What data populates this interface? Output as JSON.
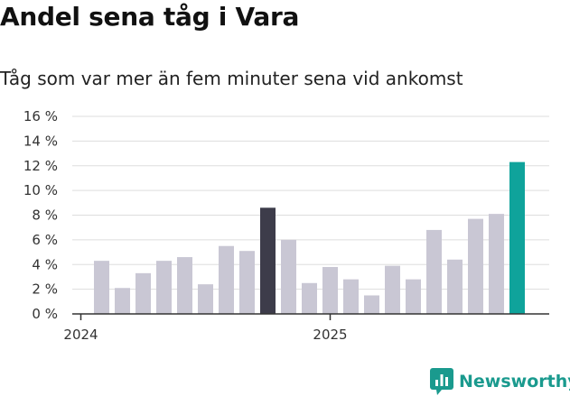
{
  "header": {
    "title": "Andel sena tåg i Vara",
    "subtitle": "Tåg som var mer än fem minuter sena vid ankomst"
  },
  "brand": {
    "name": "Newsworthy",
    "logo_icon": "bar-chart-icon",
    "color": "#1a9a8e"
  },
  "colors": {
    "default_bar": "#c9c7d4",
    "highlight_bar": "#3d3c4a",
    "latest_bar": "#0fa39b",
    "grid": "#dddddd",
    "axis": "#333333"
  },
  "chart_data": {
    "type": "bar",
    "title": "Andel sena tåg i Vara",
    "subtitle": "Tåg som var mer än fem minuter sena vid ankomst",
    "ylim": [
      0,
      16
    ],
    "y_ticks": [
      0,
      2,
      4,
      6,
      8,
      10,
      12,
      14,
      16
    ],
    "y_tick_labels": [
      "0 %",
      "2 %",
      "4 %",
      "6 %",
      "8 %",
      "10 %",
      "12 %",
      "14 %",
      "16 %"
    ],
    "x_tick_labels": [
      {
        "label": "2024",
        "index": 0
      },
      {
        "label": "2025",
        "index": 12
      }
    ],
    "grid": true,
    "series": [
      {
        "values": [
          4.3,
          2.1,
          3.3,
          4.3,
          4.6,
          2.4,
          5.5,
          5.1,
          8.6,
          6.0,
          2.5,
          3.8,
          2.8,
          1.5,
          3.9,
          2.8,
          6.8,
          4.4,
          7.7,
          8.1,
          12.3
        ],
        "highlight": {
          "8": "highlight_bar",
          "20": "latest_bar"
        }
      }
    ]
  }
}
